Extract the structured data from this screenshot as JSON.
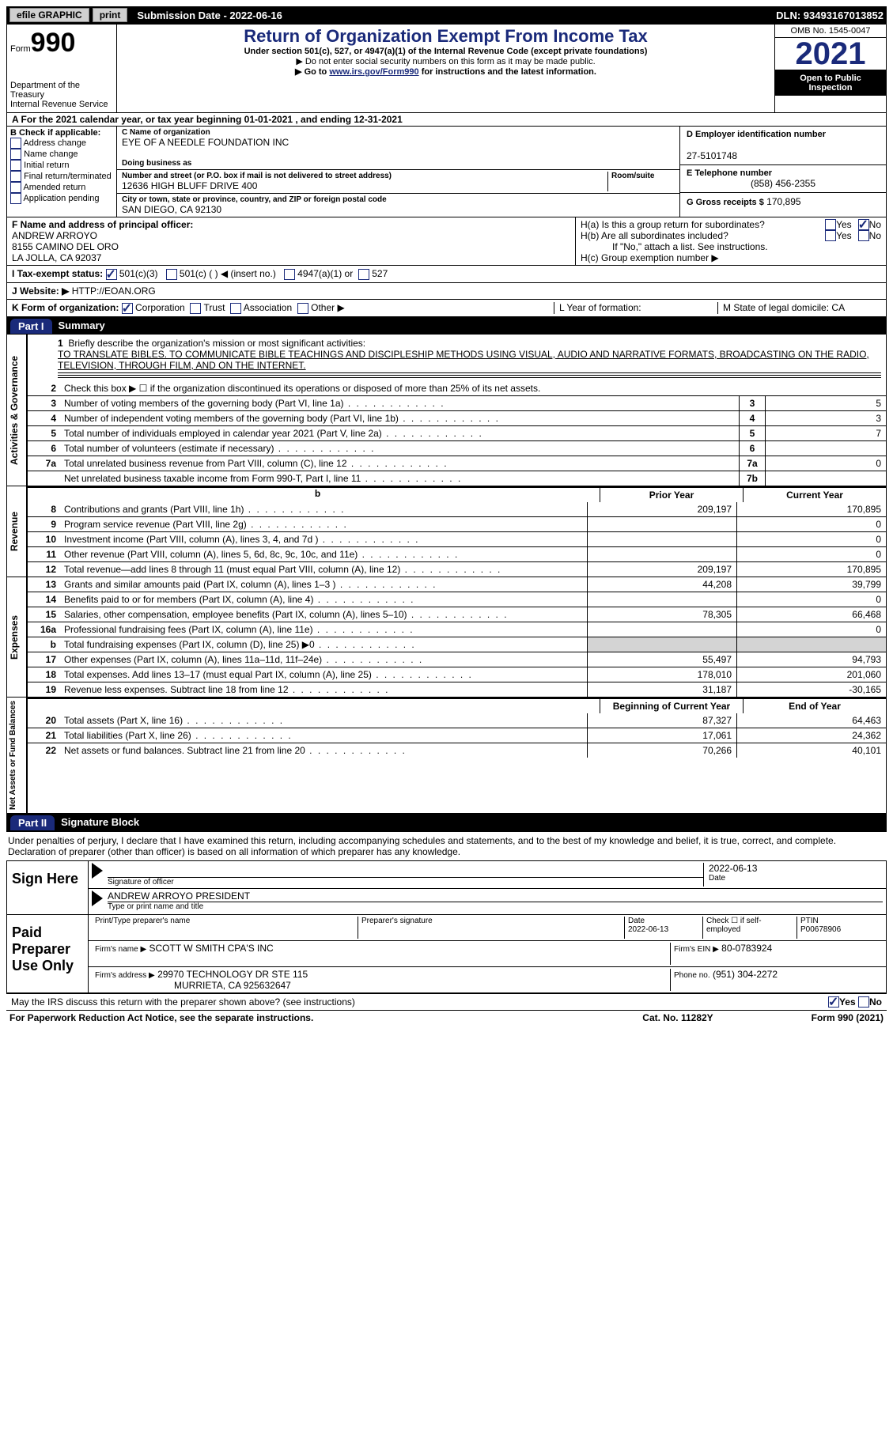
{
  "topbar": {
    "efile": "efile GRAPHIC",
    "print": "print",
    "sub_label": "Submission Date - ",
    "sub_date": "2022-06-16",
    "dln": "DLN: 93493167013852"
  },
  "header": {
    "form": "Form",
    "num": "990",
    "dept": "Department of the Treasury",
    "irs": "Internal Revenue Service",
    "title": "Return of Organization Exempt From Income Tax",
    "sub1": "Under section 501(c), 527, or 4947(a)(1) of the Internal Revenue Code (except private foundations)",
    "sub2": "▶ Do not enter social security numbers on this form as it may be made public.",
    "sub3": "▶ Go to www.irs.gov/Form990 for instructions and the latest information.",
    "omb": "OMB No. 1545-0047",
    "year": "2021",
    "inspect": "Open to Public Inspection"
  },
  "rowA": "A For the 2021 calendar year, or tax year beginning 01-01-2021   , and ending 12-31-2021",
  "colB": {
    "title": "B Check if applicable:",
    "opts": [
      "Address change",
      "Name change",
      "Initial return",
      "Final return/terminated",
      "Amended return",
      "Application pending"
    ]
  },
  "colC": {
    "name_lbl": "C Name of organization",
    "name": "EYE OF A NEEDLE FOUNDATION INC",
    "dba_lbl": "Doing business as",
    "addr_lbl": "Number and street (or P.O. box if mail is not delivered to street address)",
    "room_lbl": "Room/suite",
    "addr": "12636 HIGH BLUFF DRIVE 400",
    "city_lbl": "City or town, state or province, country, and ZIP or foreign postal code",
    "city": "SAN DIEGO, CA  92130"
  },
  "colD": {
    "d_lbl": "D Employer identification number",
    "ein": "27-5101748",
    "e_lbl": "E Telephone number",
    "phone": "(858) 456-2355",
    "g_lbl": "G Gross receipts $",
    "gross": "170,895"
  },
  "rowF": {
    "f_lbl": "F Name and address of principal officer:",
    "name": "ANDREW ARROYO",
    "addr1": "8155 CAMINO DEL ORO",
    "addr2": "LA JOLLA, CA  92037"
  },
  "rowH": {
    "ha": "H(a)  Is this a group return for subordinates?",
    "hb": "H(b)  Are all subordinates included?",
    "hnote": "If \"No,\" attach a list. See instructions.",
    "hc": "H(c)  Group exemption number ▶",
    "yes": "Yes",
    "no": "No"
  },
  "rowI": {
    "lbl": "I    Tax-exempt status:",
    "o1": "501(c)(3)",
    "o2": "501(c) (  ) ◀ (insert no.)",
    "o3": "4947(a)(1) or",
    "o4": "527"
  },
  "rowJ": {
    "lbl": "J   Website: ▶",
    "val": "HTTP://EOAN.ORG"
  },
  "rowK": {
    "lbl": "K Form of organization:",
    "corp": "Corporation",
    "trust": "Trust",
    "assoc": "Association",
    "other": "Other ▶",
    "l": "L Year of formation:",
    "m": "M State of legal domicile: CA"
  },
  "part1": {
    "tab": "Part I",
    "title": "Summary"
  },
  "mission": {
    "q": "Briefly describe the organization's mission or most significant activities:",
    "text": "TO TRANSLATE BIBLES. TO COMMUNICATE BIBLE TEACHINGS AND DISCIPLESHIP METHODS USING VISUAL, AUDIO AND NARRATIVE FORMATS, BROADCASTING ON THE RADIO, TELEVISION, THROUGH FILM, AND ON THE INTERNET."
  },
  "gov_lines": [
    {
      "n": "2",
      "d": "Check this box ▶ ☐ if the organization discontinued its operations or disposed of more than 25% of its net assets."
    },
    {
      "n": "3",
      "d": "Number of voting members of the governing body (Part VI, line 1a)",
      "box": "3",
      "v": "5"
    },
    {
      "n": "4",
      "d": "Number of independent voting members of the governing body (Part VI, line 1b)",
      "box": "4",
      "v": "3"
    },
    {
      "n": "5",
      "d": "Total number of individuals employed in calendar year 2021 (Part V, line 2a)",
      "box": "5",
      "v": "7"
    },
    {
      "n": "6",
      "d": "Total number of volunteers (estimate if necessary)",
      "box": "6",
      "v": ""
    },
    {
      "n": "7a",
      "d": "Total unrelated business revenue from Part VIII, column (C), line 12",
      "box": "7a",
      "v": "0"
    },
    {
      "n": "",
      "d": "Net unrelated business taxable income from Form 990-T, Part I, line 11",
      "box": "7b",
      "v": ""
    }
  ],
  "colhdr": {
    "py": "Prior Year",
    "cy": "Current Year"
  },
  "rev_lines": [
    {
      "n": "8",
      "d": "Contributions and grants (Part VIII, line 1h)",
      "py": "209,197",
      "cy": "170,895"
    },
    {
      "n": "9",
      "d": "Program service revenue (Part VIII, line 2g)",
      "py": "",
      "cy": "0"
    },
    {
      "n": "10",
      "d": "Investment income (Part VIII, column (A), lines 3, 4, and 7d )",
      "py": "",
      "cy": "0"
    },
    {
      "n": "11",
      "d": "Other revenue (Part VIII, column (A), lines 5, 6d, 8c, 9c, 10c, and 11e)",
      "py": "",
      "cy": "0"
    },
    {
      "n": "12",
      "d": "Total revenue—add lines 8 through 11 (must equal Part VIII, column (A), line 12)",
      "py": "209,197",
      "cy": "170,895"
    }
  ],
  "exp_lines": [
    {
      "n": "13",
      "d": "Grants and similar amounts paid (Part IX, column (A), lines 1–3 )",
      "py": "44,208",
      "cy": "39,799"
    },
    {
      "n": "14",
      "d": "Benefits paid to or for members (Part IX, column (A), line 4)",
      "py": "",
      "cy": "0"
    },
    {
      "n": "15",
      "d": "Salaries, other compensation, employee benefits (Part IX, column (A), lines 5–10)",
      "py": "78,305",
      "cy": "66,468"
    },
    {
      "n": "16a",
      "d": "Professional fundraising fees (Part IX, column (A), line 11e)",
      "py": "",
      "cy": "0"
    },
    {
      "n": "b",
      "d": "Total fundraising expenses (Part IX, column (D), line 25) ▶0",
      "py": "SHADE",
      "cy": "SHADE"
    },
    {
      "n": "17",
      "d": "Other expenses (Part IX, column (A), lines 11a–11d, 11f–24e)",
      "py": "55,497",
      "cy": "94,793"
    },
    {
      "n": "18",
      "d": "Total expenses. Add lines 13–17 (must equal Part IX, column (A), line 25)",
      "py": "178,010",
      "cy": "201,060"
    },
    {
      "n": "19",
      "d": "Revenue less expenses. Subtract line 18 from line 12",
      "py": "31,187",
      "cy": "-30,165"
    }
  ],
  "na_hdr": {
    "py": "Beginning of Current Year",
    "cy": "End of Year"
  },
  "na_lines": [
    {
      "n": "20",
      "d": "Total assets (Part X, line 16)",
      "py": "87,327",
      "cy": "64,463"
    },
    {
      "n": "21",
      "d": "Total liabilities (Part X, line 26)",
      "py": "17,061",
      "cy": "24,362"
    },
    {
      "n": "22",
      "d": "Net assets or fund balances. Subtract line 21 from line 20",
      "py": "70,266",
      "cy": "40,101"
    }
  ],
  "part2": {
    "tab": "Part II",
    "title": "Signature Block"
  },
  "sig_intro": "Under penalties of perjury, I declare that I have examined this return, including accompanying schedules and statements, and to the best of my knowledge and belief, it is true, correct, and complete. Declaration of preparer (other than officer) is based on all information of which preparer has any knowledge.",
  "sign": {
    "here": "Sign Here",
    "sig_lbl": "Signature of officer",
    "date": "2022-06-13",
    "date_lbl": "Date",
    "name": "ANDREW ARROYO PRESIDENT",
    "name_lbl": "Type or print name and title"
  },
  "paid": {
    "title": "Paid Preparer Use Only",
    "pname_lbl": "Print/Type preparer's name",
    "psig_lbl": "Preparer's signature",
    "pdate_lbl": "Date",
    "pdate": "2022-06-13",
    "self_lbl": "Check ☐ if self-employed",
    "ptin_lbl": "PTIN",
    "ptin": "P00678906",
    "firm_lbl": "Firm's name    ▶",
    "firm": "SCOTT W SMITH CPA'S INC",
    "firm_ein_lbl": "Firm's EIN ▶",
    "firm_ein": "80-0783924",
    "addr_lbl": "Firm's address ▶",
    "addr": "29970 TECHNOLOGY DR STE 115",
    "city": "MURRIETA, CA  925632647",
    "phone_lbl": "Phone no.",
    "phone": "(951) 304-2272"
  },
  "mayirs": "May the IRS discuss this return with the preparer shown above? (see instructions)",
  "footer": {
    "left": "For Paperwork Reduction Act Notice, see the separate instructions.",
    "mid": "Cat. No. 11282Y",
    "right": "Form 990 (2021)"
  },
  "vlabels": {
    "gov": "Activities & Governance",
    "rev": "Revenue",
    "exp": "Expenses",
    "na": "Net Assets or Fund Balances"
  }
}
